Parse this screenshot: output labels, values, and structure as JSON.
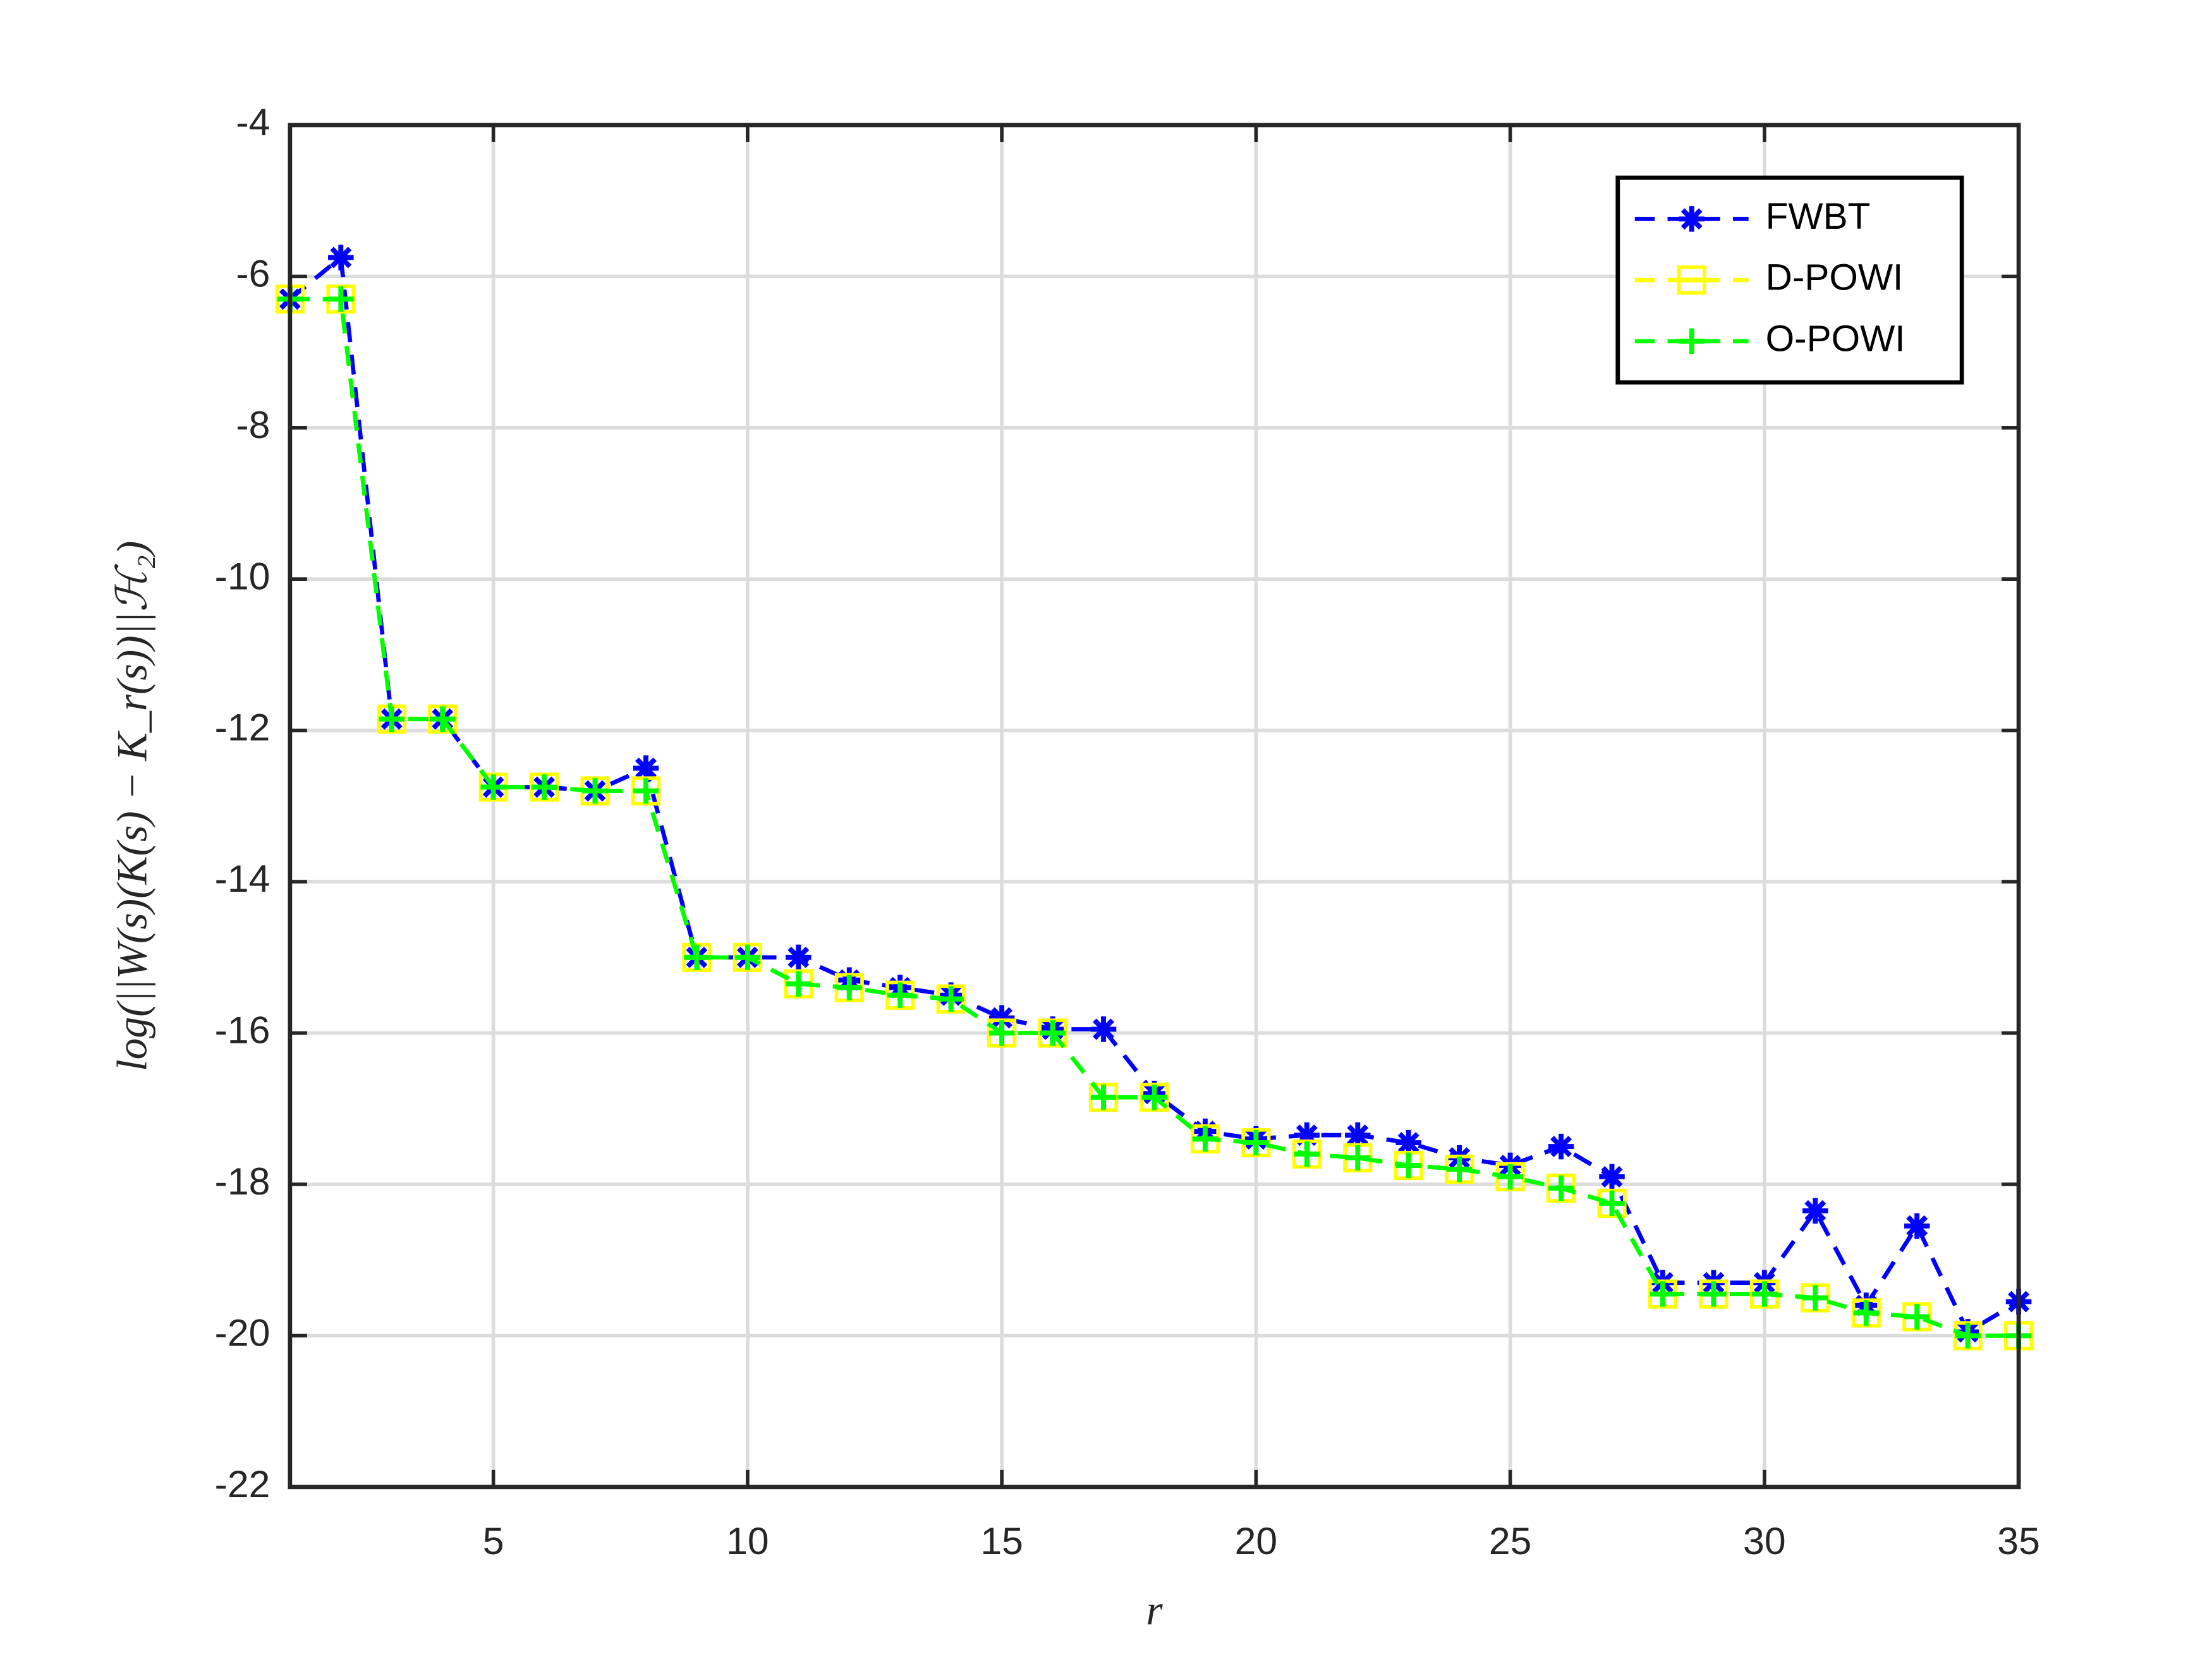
{
  "chart_data": {
    "type": "line",
    "xlabel": "r",
    "ylabel": "log(||W(s)(K(s) − K_r(s))||ℋ₂)",
    "x": [
      1,
      2,
      3,
      4,
      5,
      6,
      7,
      8,
      9,
      10,
      11,
      12,
      13,
      14,
      15,
      16,
      17,
      18,
      19,
      20,
      21,
      22,
      23,
      24,
      25,
      26,
      27,
      28,
      29,
      30,
      31,
      32,
      33,
      34,
      35
    ],
    "series": [
      {
        "name": "FWBT",
        "color": "#0000ff",
        "marker": "asterisk",
        "values": [
          -6.3,
          -5.75,
          -11.85,
          -11.85,
          -12.75,
          -12.75,
          -12.8,
          -12.5,
          -15.0,
          -15.0,
          -15.0,
          -15.3,
          -15.4,
          -15.5,
          -15.8,
          -15.95,
          -15.95,
          -16.8,
          -17.3,
          -17.4,
          -17.35,
          -17.35,
          -17.45,
          -17.65,
          -17.75,
          -17.5,
          -17.9,
          -19.3,
          -19.3,
          -19.3,
          -18.35,
          -19.6,
          -18.55,
          -19.95,
          -19.55
        ]
      },
      {
        "name": "D-POWI",
        "color": "#ffff00",
        "marker": "square",
        "values": [
          -6.3,
          -6.3,
          -11.85,
          -11.85,
          -12.75,
          -12.75,
          -12.8,
          -12.8,
          -15.0,
          -15.0,
          -15.35,
          -15.4,
          -15.5,
          -15.55,
          -16.0,
          -16.0,
          -16.85,
          -16.85,
          -17.4,
          -17.45,
          -17.6,
          -17.65,
          -17.75,
          -17.8,
          -17.9,
          -18.05,
          -18.25,
          -19.45,
          -19.45,
          -19.45,
          -19.5,
          -19.7,
          -19.75,
          -20.0,
          -20.0
        ]
      },
      {
        "name": "O-POWI",
        "color": "#00ff00",
        "marker": "plus",
        "values": [
          -6.3,
          -6.3,
          -11.85,
          -11.85,
          -12.75,
          -12.75,
          -12.8,
          -12.8,
          -15.0,
          -15.0,
          -15.35,
          -15.4,
          -15.5,
          -15.55,
          -16.0,
          -16.0,
          -16.85,
          -16.85,
          -17.4,
          -17.45,
          -17.6,
          -17.65,
          -17.75,
          -17.8,
          -17.9,
          -18.05,
          -18.25,
          -19.45,
          -19.45,
          -19.45,
          -19.5,
          -19.7,
          -19.75,
          -20.0,
          -20.0
        ]
      }
    ],
    "xlim": [
      1,
      35
    ],
    "xticks": [
      5,
      10,
      15,
      20,
      25,
      30,
      35
    ],
    "ylim": [
      -22,
      -4
    ],
    "yticks": [
      -22,
      -20,
      -18,
      -16,
      -14,
      -12,
      -10,
      -8,
      -6,
      -4
    ],
    "grid": true,
    "legend": "top-right"
  }
}
